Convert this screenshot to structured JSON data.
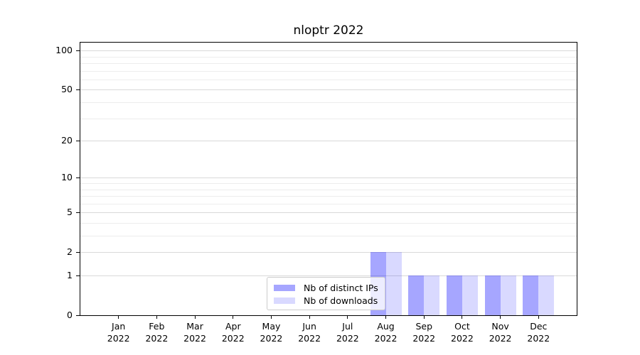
{
  "title": "nloptr 2022",
  "chart_data": {
    "type": "bar",
    "title": "nloptr 2022",
    "categories": [
      "Jan",
      "Feb",
      "Mar",
      "Apr",
      "May",
      "Jun",
      "Jul",
      "Aug",
      "Sep",
      "Oct",
      "Nov",
      "Dec"
    ],
    "year_label": "2022",
    "series": [
      {
        "name": "Nb of distinct IPs",
        "color": "rgba(0,0,255,0.35)",
        "values": [
          0,
          0,
          0,
          0,
          0,
          0,
          0,
          2,
          1,
          1,
          1,
          1
        ]
      },
      {
        "name": "Nb of downloads",
        "color": "rgba(0,0,255,0.15)",
        "values": [
          0,
          0,
          0,
          0,
          0,
          0,
          0,
          2,
          1,
          1,
          1,
          1
        ]
      }
    ],
    "yscale": "log1p",
    "ylim": [
      0,
      115
    ],
    "yticks": [
      0,
      1,
      2,
      5,
      10,
      20,
      50,
      100
    ],
    "minor_gridlines": [
      3,
      4,
      6,
      7,
      8,
      9,
      30,
      40,
      60,
      70,
      80,
      90
    ],
    "grid": "horizontal",
    "legend_position": "lower-center"
  },
  "colors": {
    "background": "#ffffff",
    "axis": "#000000",
    "major_grid": "#d9d9d9",
    "minor_grid": "#ededed",
    "text": "#000000",
    "legend_border": "#cccccc"
  }
}
